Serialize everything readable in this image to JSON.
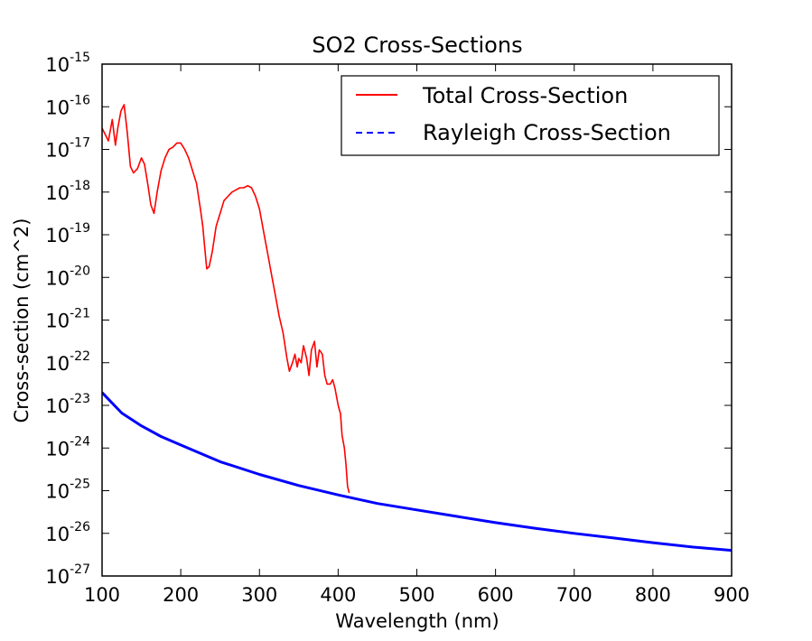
{
  "chart_data": {
    "type": "line",
    "title": "SO2 Cross-Sections",
    "xlabel": "Wavelength (nm)",
    "ylabel": "Cross-section (cm^2)",
    "xlim": [
      100,
      900
    ],
    "ylim_log10": [
      -27,
      -15
    ],
    "yscale": "log",
    "x_ticks": [
      "100",
      "200",
      "300",
      "400",
      "500",
      "600",
      "700",
      "800",
      "900"
    ],
    "y_ticks": [
      {
        "base": "10",
        "exp": "-15"
      },
      {
        "base": "10",
        "exp": "-16"
      },
      {
        "base": "10",
        "exp": "-17"
      },
      {
        "base": "10",
        "exp": "-18"
      },
      {
        "base": "10",
        "exp": "-19"
      },
      {
        "base": "10",
        "exp": "-20"
      },
      {
        "base": "10",
        "exp": "-21"
      },
      {
        "base": "10",
        "exp": "-22"
      },
      {
        "base": "10",
        "exp": "-23"
      },
      {
        "base": "10",
        "exp": "-24"
      },
      {
        "base": "10",
        "exp": "-25"
      },
      {
        "base": "10",
        "exp": "-26"
      },
      {
        "base": "10",
        "exp": "-27"
      }
    ],
    "legend_position": "top-right",
    "series": [
      {
        "name": "Total Cross-Section",
        "color": "#ff0000",
        "style": "solid",
        "x": [
          100,
          108,
          113,
          117,
          120,
          124,
          128,
          132,
          136,
          140,
          145,
          150,
          154,
          158,
          162,
          166,
          170,
          175,
          180,
          185,
          190,
          195,
          200,
          205,
          210,
          215,
          220,
          225,
          228,
          231,
          233,
          236,
          240,
          245,
          250,
          255,
          260,
          265,
          270,
          275,
          280,
          285,
          290,
          295,
          300,
          305,
          310,
          315,
          320,
          325,
          330,
          335,
          338,
          342,
          345,
          348,
          350,
          353,
          356,
          360,
          363,
          366,
          370,
          373,
          376,
          380,
          383,
          386,
          390,
          393,
          396,
          400,
          403,
          405,
          408,
          410,
          412,
          414
        ],
        "log10_y": [
          -16.5,
          -16.8,
          -16.3,
          -16.9,
          -16.5,
          -16.1,
          -15.95,
          -16.6,
          -17.4,
          -17.55,
          -17.45,
          -17.2,
          -17.35,
          -17.8,
          -18.3,
          -18.5,
          -18.0,
          -17.5,
          -17.2,
          -17.0,
          -16.95,
          -16.85,
          -16.85,
          -17.0,
          -17.2,
          -17.5,
          -17.8,
          -18.4,
          -18.8,
          -19.4,
          -19.8,
          -19.75,
          -19.4,
          -18.8,
          -18.5,
          -18.2,
          -18.1,
          -18.0,
          -17.95,
          -17.9,
          -17.9,
          -17.85,
          -17.9,
          -18.1,
          -18.4,
          -18.9,
          -19.4,
          -19.9,
          -20.4,
          -20.9,
          -21.3,
          -21.9,
          -22.2,
          -22.0,
          -21.8,
          -22.1,
          -21.9,
          -22.0,
          -21.6,
          -21.9,
          -22.3,
          -21.7,
          -21.5,
          -22.1,
          -21.7,
          -21.8,
          -22.3,
          -22.5,
          -22.5,
          -22.4,
          -22.6,
          -23.0,
          -23.2,
          -23.7,
          -24.0,
          -24.4,
          -24.9,
          -25.05
        ]
      },
      {
        "name": "Rayleigh Cross-Section",
        "color": "#0000ff",
        "style": "dashed",
        "x": [
          100,
          125,
          150,
          175,
          200,
          250,
          300,
          350,
          400,
          450,
          500,
          550,
          600,
          650,
          700,
          750,
          800,
          850,
          900
        ],
        "log10_y": [
          -22.7,
          -23.18,
          -23.48,
          -23.73,
          -23.93,
          -24.32,
          -24.62,
          -24.88,
          -25.1,
          -25.3,
          -25.45,
          -25.6,
          -25.75,
          -25.88,
          -26.0,
          -26.11,
          -26.22,
          -26.32,
          -26.4
        ]
      }
    ]
  }
}
